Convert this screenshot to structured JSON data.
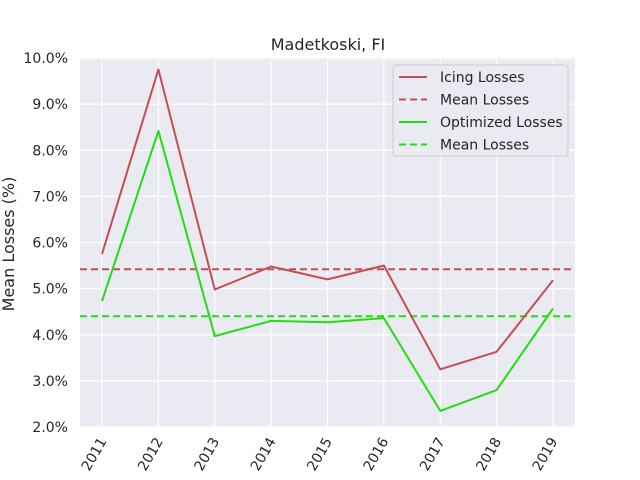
{
  "chart_data": {
    "type": "line",
    "title": "Madetkoski, FI",
    "xlabel": "",
    "ylabel": "Mean Losses (%)",
    "categories": [
      "2011",
      "2012",
      "2013",
      "2014",
      "2015",
      "2016",
      "2017",
      "2018",
      "2019"
    ],
    "ylim": [
      2.0,
      10.0
    ],
    "yticks": [
      "2.0%",
      "3.0%",
      "4.0%",
      "5.0%",
      "6.0%",
      "7.0%",
      "8.0%",
      "9.0%",
      "10.0%"
    ],
    "ytick_values": [
      2.0,
      3.0,
      4.0,
      5.0,
      6.0,
      7.0,
      8.0,
      9.0,
      10.0
    ],
    "grid": true,
    "legend_position": "top-right",
    "background_color": "#eaeaf2",
    "series": [
      {
        "name": "Icing Losses",
        "color": "#c44e52",
        "style": "solid",
        "values": [
          5.75,
          9.75,
          4.98,
          5.48,
          5.2,
          5.5,
          3.25,
          3.63,
          5.18
        ]
      },
      {
        "name": "Optimized Losses",
        "color": "#22dd11",
        "style": "solid",
        "values": [
          4.73,
          8.42,
          3.97,
          4.3,
          4.27,
          4.36,
          2.35,
          2.8,
          4.57
        ]
      }
    ],
    "reference_lines": [
      {
        "name": "Mean Losses",
        "color": "#c44e52",
        "style": "dashed",
        "value": 5.42
      },
      {
        "name": "Mean Losses",
        "color": "#22dd11",
        "style": "dashed",
        "value": 4.4
      }
    ],
    "legend": [
      {
        "label": "Icing Losses",
        "color": "#c44e52",
        "style": "solid"
      },
      {
        "label": "Mean Losses",
        "color": "#c44e52",
        "style": "dashed"
      },
      {
        "label": "Optimized Losses",
        "color": "#22dd11",
        "style": "solid"
      },
      {
        "label": "Mean Losses",
        "color": "#22dd11",
        "style": "dashed"
      }
    ]
  }
}
